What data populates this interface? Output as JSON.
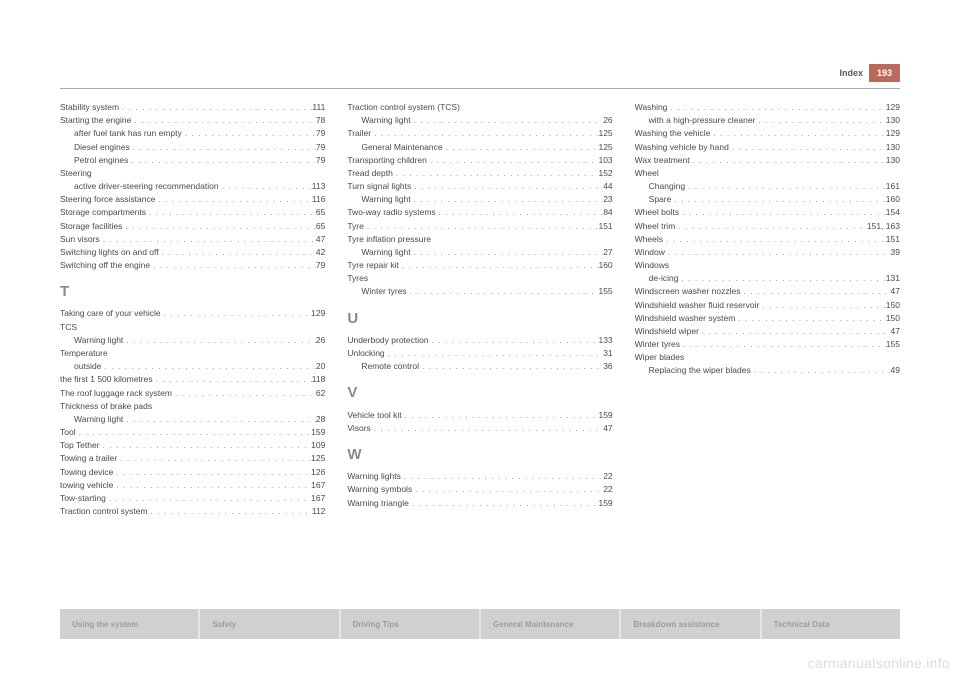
{
  "header": {
    "section": "Index",
    "page_number": "193"
  },
  "columns": [
    [
      {
        "t": "Stability system",
        "p": "111"
      },
      {
        "t": "Starting the engine",
        "p": "78"
      },
      {
        "t": "after fuel tank has run empty",
        "p": "79",
        "indent": true
      },
      {
        "t": "Diesel engines",
        "p": "79",
        "indent": true
      },
      {
        "t": "Petrol engines",
        "p": "79",
        "indent": true
      },
      {
        "t": "Steering",
        "nopage": true
      },
      {
        "t": "active driver-steering recommendation",
        "p": "113",
        "indent": true
      },
      {
        "t": "Steering force assistance",
        "p": "116"
      },
      {
        "t": "Storage compartments",
        "p": "65"
      },
      {
        "t": "Storage facilities",
        "p": "65"
      },
      {
        "t": "Sun visors",
        "p": "47"
      },
      {
        "t": "Switching lights on and off",
        "p": "42"
      },
      {
        "t": "Switching off the engine",
        "p": "79"
      },
      {
        "letter": "T"
      },
      {
        "t": "Taking care of your vehicle",
        "p": "129"
      },
      {
        "t": "TCS",
        "nopage": true
      },
      {
        "t": "Warning light",
        "p": "26",
        "indent": true
      },
      {
        "t": "Temperature",
        "nopage": true
      },
      {
        "t": "outside",
        "p": "20",
        "indent": true
      },
      {
        "t": "the first 1 500 kilometres",
        "p": "118"
      },
      {
        "t": "The roof luggage rack system",
        "p": "62"
      },
      {
        "t": "Thickness of brake pads",
        "nopage": true
      },
      {
        "t": "Warning light",
        "p": "28",
        "indent": true
      },
      {
        "t": "Tool",
        "p": "159"
      },
      {
        "t": "Top Tether",
        "p": "109"
      },
      {
        "t": "Towing a trailer",
        "p": "125"
      },
      {
        "t": "Towing device",
        "p": "126"
      },
      {
        "t": "towing vehicle",
        "p": "167"
      },
      {
        "t": "Tow-starting",
        "p": "167"
      },
      {
        "t": "Traction control system",
        "p": "112"
      }
    ],
    [
      {
        "t": "Traction control system (TCS)",
        "nopage": true
      },
      {
        "t": "Warning light",
        "p": "26",
        "indent": true
      },
      {
        "t": "Trailer",
        "p": "125"
      },
      {
        "t": "General Maintenance",
        "p": "125",
        "indent": true
      },
      {
        "t": "Transporting children",
        "p": "103"
      },
      {
        "t": "Tread depth",
        "p": "152"
      },
      {
        "t": "Turn signal lights",
        "p": "44"
      },
      {
        "t": "Warning light",
        "p": "23",
        "indent": true
      },
      {
        "t": "Two-way radio systems",
        "p": "84"
      },
      {
        "t": "Tyre",
        "p": "151"
      },
      {
        "t": "Tyre inflation pressure",
        "nopage": true
      },
      {
        "t": "Warning light",
        "p": "27",
        "indent": true
      },
      {
        "t": "Tyre repair kit",
        "p": "160"
      },
      {
        "t": "Tyres",
        "nopage": true
      },
      {
        "t": "Winter tyres",
        "p": "155",
        "indent": true
      },
      {
        "letter": "U"
      },
      {
        "t": "Underbody protection",
        "p": "133"
      },
      {
        "t": "Unlocking",
        "p": "31"
      },
      {
        "t": "Remote control",
        "p": "36",
        "indent": true
      },
      {
        "letter": "V"
      },
      {
        "t": "Vehicle tool kit",
        "p": "159"
      },
      {
        "t": "Visors",
        "p": "47"
      },
      {
        "letter": "W"
      },
      {
        "t": "Warning lights",
        "p": "22"
      },
      {
        "t": "Warning symbols",
        "p": "22"
      },
      {
        "t": "Warning triangle",
        "p": "159"
      }
    ],
    [
      {
        "t": "Washing",
        "p": "129"
      },
      {
        "t": "with a high-pressure cleaner",
        "p": "130",
        "indent": true
      },
      {
        "t": "Washing the vehicle",
        "p": "129"
      },
      {
        "t": "Washing vehicle by hand",
        "p": "130"
      },
      {
        "t": "Wax treatment",
        "p": "130"
      },
      {
        "t": "Wheel",
        "nopage": true
      },
      {
        "t": "Changing",
        "p": "161",
        "indent": true
      },
      {
        "t": "Spare",
        "p": "160",
        "indent": true
      },
      {
        "t": "Wheel bolts",
        "p": "154"
      },
      {
        "t": "Wheel trim",
        "p": "151, 163"
      },
      {
        "t": "Wheels",
        "p": "151"
      },
      {
        "t": "Window",
        "p": "39"
      },
      {
        "t": "Windows",
        "nopage": true
      },
      {
        "t": "de-icing",
        "p": "131",
        "indent": true
      },
      {
        "t": "Windscreen washer nozzles",
        "p": "47"
      },
      {
        "t": "Windshield washer fluid reservoir",
        "p": "150"
      },
      {
        "t": "Windshield washer system",
        "p": "150"
      },
      {
        "t": "Windshield wiper",
        "p": "47"
      },
      {
        "t": "Winter tyres",
        "p": "155"
      },
      {
        "t": "Wiper blades",
        "nopage": true
      },
      {
        "t": "Replacing the wiper blades",
        "p": "49",
        "indent": true
      }
    ]
  ],
  "tabs": [
    "Using the system",
    "Safety",
    "Driving Tips",
    "General Maintenance",
    "Breakdown assistance",
    "Technical Data"
  ],
  "watermark": "carmanualsonline.info"
}
